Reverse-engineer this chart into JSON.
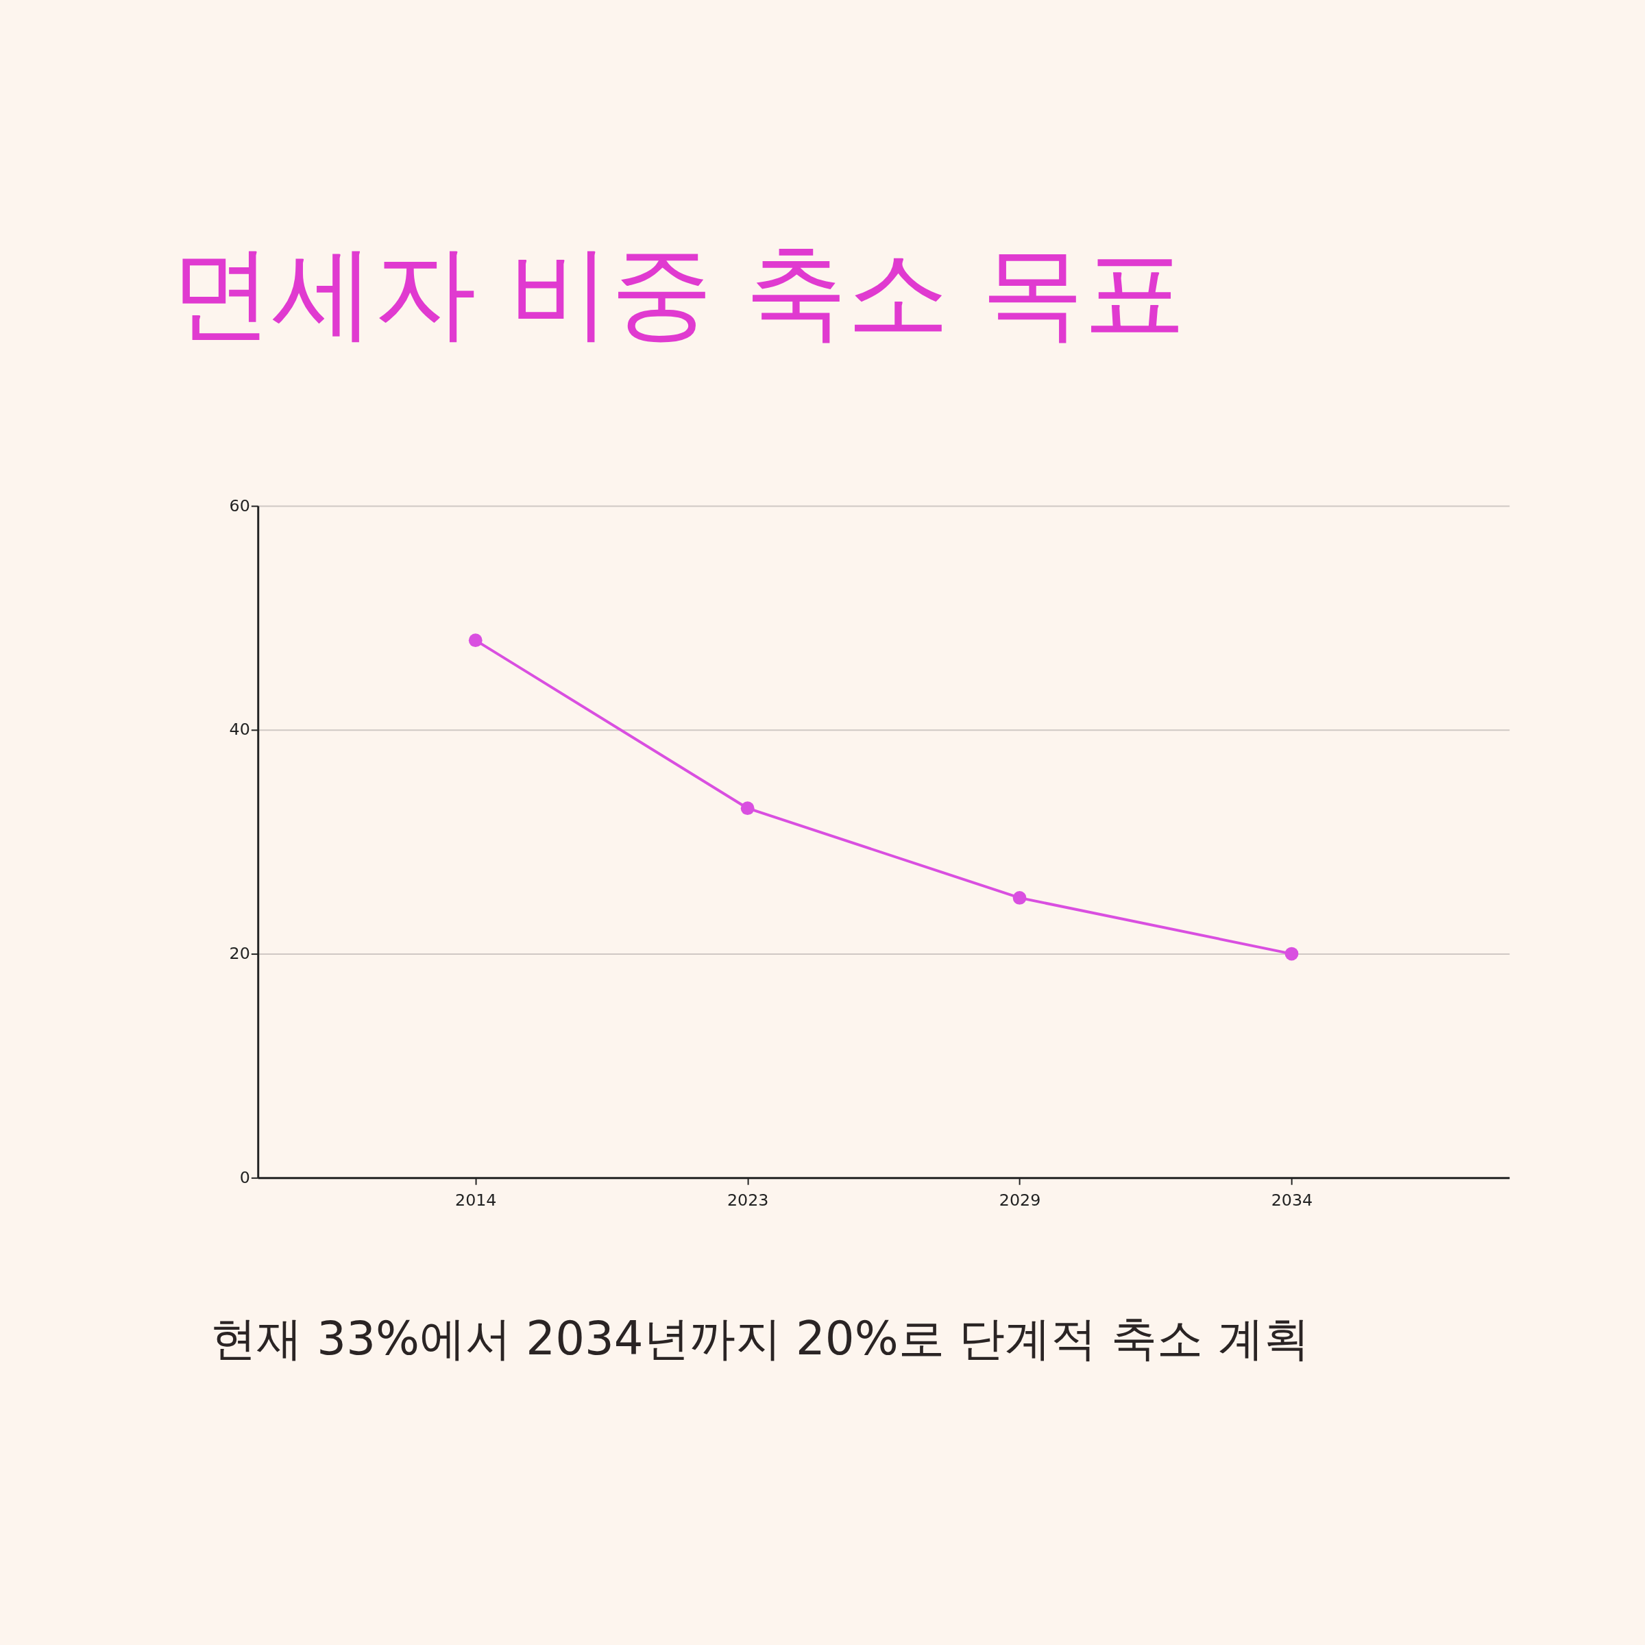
{
  "chart_data": {
    "type": "line",
    "title": "면세자 비중 축소 목표",
    "categories": [
      "2014",
      "2023",
      "2029",
      "2034"
    ],
    "series": [
      {
        "color": "#d94fe0",
        "values": [
          48,
          33,
          25,
          20
        ]
      }
    ],
    "ylim": [
      0,
      60
    ],
    "yticks": [
      0,
      20,
      40,
      60
    ],
    "grid": "y",
    "marker": "circle",
    "line_style": "solid",
    "annotations": [
      "현재 33%에서 2034년까지 20%로 단계적 축소 계획"
    ]
  }
}
